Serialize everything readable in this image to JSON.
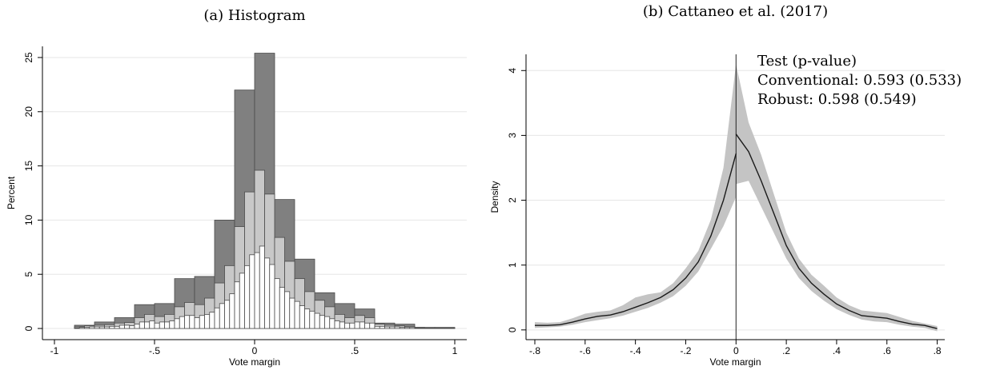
{
  "chart_data": [
    {
      "type": "histogram",
      "title": "(a)  Histogram",
      "xlabel": "Vote margin",
      "ylabel": "Percent",
      "xlim": [
        -1.06,
        1.06
      ],
      "ylim": [
        -1.03,
        26.03
      ],
      "xticks": [
        -1,
        {
          "value": -0.5,
          "label": "-.5"
        },
        0,
        {
          "value": 0.5,
          "label": ".5"
        },
        1
      ],
      "yticks": [
        0,
        5,
        10,
        15,
        20,
        25
      ],
      "grid": true,
      "series": [
        {
          "color": "#808080",
          "bins": [
            -0.9,
            -0.8,
            -0.7,
            -0.6,
            -0.5,
            -0.4,
            -0.3,
            -0.2,
            -0.1,
            0,
            0.1,
            0.2,
            0.3,
            0.4,
            0.5,
            0.6,
            0.7,
            0.8,
            0.9,
            1.0
          ],
          "values": [
            0.3,
            0.6,
            1.0,
            2.2,
            2.3,
            4.6,
            4.8,
            10.0,
            22.0,
            25.4,
            11.9,
            6.4,
            3.3,
            2.3,
            1.8,
            0.5,
            0.4,
            0.1,
            0.1
          ]
        },
        {
          "color": "#c8c8c8",
          "bins": [
            -0.9,
            -0.85,
            -0.8,
            -0.75,
            -0.7,
            -0.65,
            -0.6,
            -0.55,
            -0.5,
            -0.45,
            -0.4,
            -0.35,
            -0.3,
            -0.25,
            -0.2,
            -0.15,
            -0.1,
            -0.05,
            0,
            0.05,
            0.1,
            0.15,
            0.2,
            0.25,
            0.3,
            0.35,
            0.4,
            0.45,
            0.5,
            0.55,
            0.6,
            0.65,
            0.7,
            0.75,
            0.8,
            0.85,
            0.9,
            0.95,
            1.0
          ],
          "values": [
            0.15,
            0.25,
            0.3,
            0.35,
            0.5,
            0.55,
            1.0,
            1.3,
            1.1,
            1.3,
            2.0,
            2.4,
            2.2,
            2.8,
            4.2,
            5.8,
            9.4,
            12.6,
            14.6,
            12.4,
            8.4,
            6.2,
            4.6,
            3.4,
            2.6,
            2.0,
            1.3,
            1.0,
            1.2,
            1.0,
            0.4,
            0.3,
            0.25,
            0.2,
            0.1,
            0.05,
            0.05,
            0.05
          ]
        },
        {
          "color": "#ffffff",
          "bins": [
            -0.9,
            -0.875,
            -0.85,
            -0.825,
            -0.8,
            -0.775,
            -0.75,
            -0.725,
            -0.7,
            -0.675,
            -0.65,
            -0.625,
            -0.6,
            -0.575,
            -0.55,
            -0.525,
            -0.5,
            -0.475,
            -0.45,
            -0.425,
            -0.4,
            -0.375,
            -0.35,
            -0.325,
            -0.3,
            -0.275,
            -0.25,
            -0.225,
            -0.2,
            -0.175,
            -0.15,
            -0.125,
            -0.1,
            -0.075,
            -0.05,
            -0.025,
            0,
            0.025,
            0.05,
            0.075,
            0.1,
            0.125,
            0.15,
            0.175,
            0.2,
            0.225,
            0.25,
            0.275,
            0.3,
            0.325,
            0.35,
            0.375,
            0.4,
            0.425,
            0.45,
            0.475,
            0.5,
            0.525,
            0.55,
            0.575,
            0.6,
            0.625,
            0.65,
            0.675,
            0.7,
            0.725,
            0.75,
            0.775,
            0.8,
            0.825,
            0.85,
            0.875,
            0.9,
            0.925,
            0.95,
            0.975,
            1.0
          ],
          "values": [
            0.05,
            0.1,
            0.1,
            0.15,
            0.15,
            0.15,
            0.15,
            0.2,
            0.2,
            0.3,
            0.3,
            0.25,
            0.4,
            0.6,
            0.6,
            0.7,
            0.5,
            0.6,
            0.6,
            0.7,
            0.9,
            1.1,
            1.2,
            1.2,
            1.0,
            1.2,
            1.3,
            1.5,
            1.9,
            2.3,
            2.6,
            3.2,
            4.3,
            5.1,
            5.8,
            6.8,
            7.0,
            7.6,
            6.5,
            5.9,
            4.6,
            3.8,
            3.4,
            2.8,
            2.5,
            2.1,
            1.8,
            1.6,
            1.4,
            1.2,
            1.1,
            0.9,
            0.7,
            0.6,
            0.5,
            0.5,
            0.6,
            0.6,
            0.5,
            0.5,
            0.2,
            0.2,
            0.15,
            0.15,
            0.15,
            0.1,
            0.1,
            0.1,
            0.05,
            0.05,
            0.03,
            0.02,
            0.02,
            0.03,
            0.02,
            0.03
          ]
        }
      ]
    },
    {
      "type": "density",
      "title": "(b)  Cattaneo et al. (2017)",
      "xlabel": "Vote margin",
      "ylabel": "Density",
      "xlim": [
        -0.835,
        0.83
      ],
      "ylim": [
        -0.15,
        4.25
      ],
      "xticks": [
        {
          "value": -0.8,
          "label": "-.8"
        },
        {
          "value": -0.6,
          "label": "-.6"
        },
        {
          "value": -0.4,
          "label": "-.4"
        },
        {
          "value": -0.2,
          "label": "-.2"
        },
        0,
        {
          "value": 0.2,
          "label": ".2"
        },
        {
          "value": 0.4,
          "label": ".4"
        },
        {
          "value": 0.6,
          "label": ".6"
        },
        {
          "value": 0.8,
          "label": ".8"
        }
      ],
      "yticks": [
        0,
        1,
        2,
        3,
        4
      ],
      "grid": true,
      "xline": 0,
      "annotations": [
        "Test (p-value)",
        "Conventional: 0.593 (0.533)",
        "Robust: 0.598 (0.549)"
      ],
      "series": [
        {
          "color": "#1a1a1a",
          "band_color": "#c4c4c4",
          "x": [
            -0.8,
            -0.75,
            -0.7,
            -0.65,
            -0.6,
            -0.55,
            -0.5,
            -0.45,
            -0.4,
            -0.35,
            -0.3,
            -0.25,
            -0.2,
            -0.15,
            -0.1,
            -0.05,
            0
          ],
          "values": [
            0.07,
            0.07,
            0.08,
            0.12,
            0.17,
            0.21,
            0.23,
            0.28,
            0.35,
            0.42,
            0.5,
            0.62,
            0.8,
            1.05,
            1.45,
            2.0,
            2.72
          ],
          "lower": [
            0.03,
            0.04,
            0.05,
            0.08,
            0.12,
            0.15,
            0.18,
            0.22,
            0.28,
            0.34,
            0.42,
            0.52,
            0.68,
            0.9,
            1.25,
            1.6,
            2.05
          ],
          "upper": [
            0.12,
            0.11,
            0.12,
            0.18,
            0.25,
            0.28,
            0.3,
            0.38,
            0.5,
            0.55,
            0.58,
            0.72,
            0.95,
            1.22,
            1.7,
            2.5,
            4.1
          ]
        },
        {
          "color": "#1a1a1a",
          "band_color": "#c4c4c4",
          "x": [
            0,
            0.05,
            0.1,
            0.15,
            0.2,
            0.25,
            0.3,
            0.35,
            0.4,
            0.45,
            0.5,
            0.55,
            0.6,
            0.65,
            0.7,
            0.75,
            0.8
          ],
          "values": [
            3.02,
            2.75,
            2.3,
            1.8,
            1.3,
            0.95,
            0.72,
            0.55,
            0.4,
            0.3,
            0.22,
            0.2,
            0.18,
            0.13,
            0.09,
            0.07,
            0.02
          ],
          "lower": [
            2.25,
            2.3,
            1.9,
            1.5,
            1.1,
            0.8,
            0.6,
            0.45,
            0.32,
            0.23,
            0.16,
            0.13,
            0.12,
            0.08,
            0.05,
            0.03,
            -0.02
          ],
          "upper": [
            4.1,
            3.2,
            2.7,
            2.1,
            1.5,
            1.1,
            0.85,
            0.68,
            0.5,
            0.38,
            0.3,
            0.28,
            0.26,
            0.2,
            0.14,
            0.1,
            0.06
          ]
        }
      ]
    }
  ]
}
